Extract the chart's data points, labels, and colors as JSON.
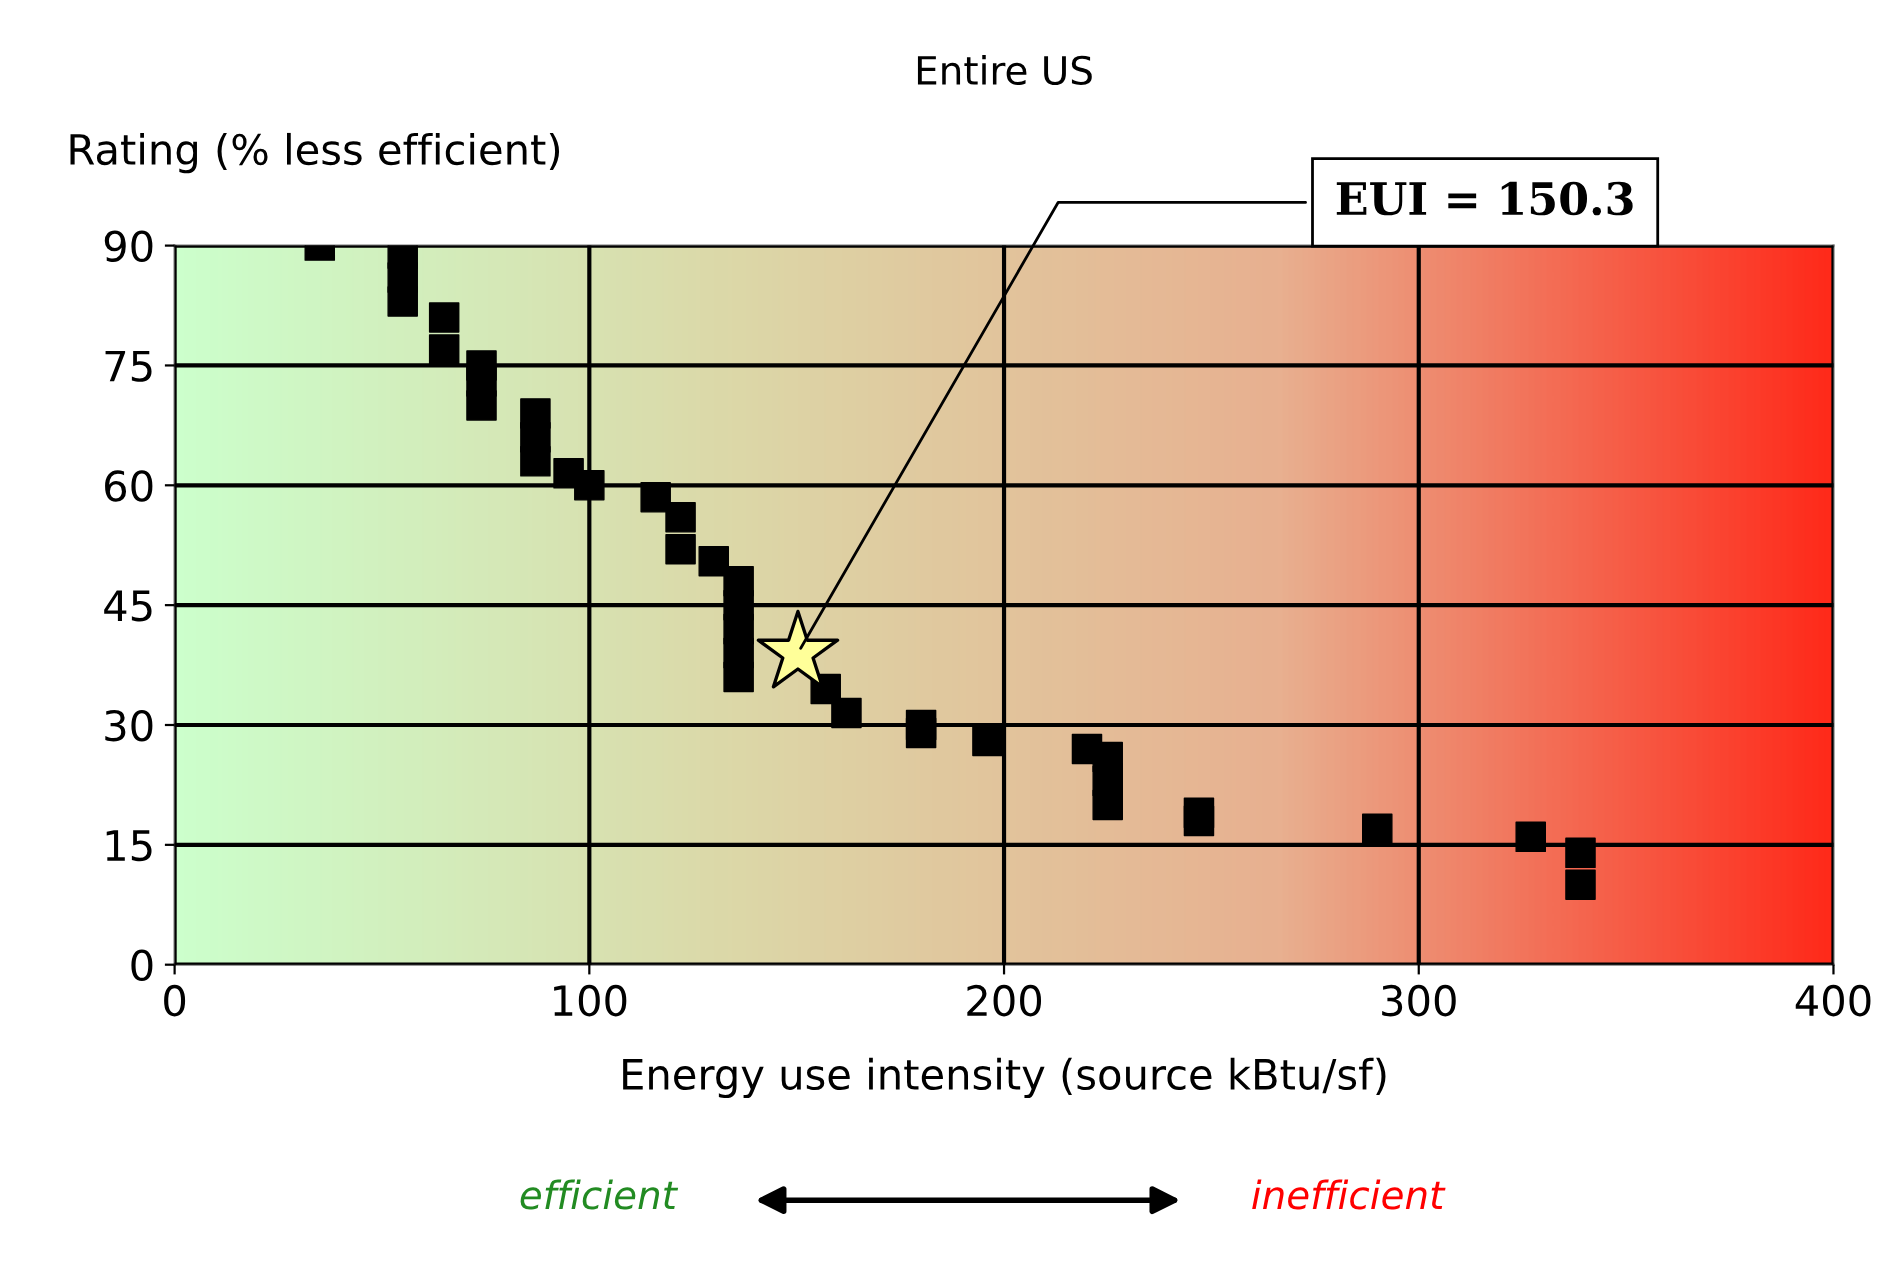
{
  "chart_data": {
    "type": "scatter",
    "title": "Entire US",
    "xlabel": "Energy use intensity (source kBtu/sf)",
    "ylabel": "Rating (% less efficient)",
    "xlim": [
      0,
      400
    ],
    "xticks": [
      0,
      100,
      200,
      300,
      400
    ],
    "ylim": [
      0,
      90
    ],
    "yticks": [
      0,
      15,
      30,
      45,
      60,
      75,
      90
    ],
    "grid": true,
    "series": [
      {
        "marker": "square",
        "color": "#000000",
        "x": [
          35,
          55,
          55,
          55,
          65,
          65,
          74,
          74,
          74,
          87,
          87,
          87,
          95,
          100,
          116,
          122,
          122,
          130,
          136,
          136,
          136,
          136,
          136,
          157,
          162,
          180,
          180,
          196,
          220,
          225,
          225,
          225,
          247,
          247,
          290,
          327,
          339,
          339
        ],
        "values": [
          90,
          89,
          86,
          83,
          81,
          77,
          75,
          73,
          70,
          69,
          66,
          63,
          61.5,
          60,
          58.5,
          56,
          52,
          50.5,
          48,
          45,
          42,
          39,
          36,
          34.5,
          31.5,
          30,
          29,
          28,
          27,
          26,
          23,
          20,
          19,
          18,
          17,
          16,
          14,
          10
        ]
      },
      {
        "marker": "star",
        "color": "#ffff99",
        "x": [
          150.3
        ],
        "values": [
          39
        ]
      }
    ],
    "annotations": [
      {
        "text": "EUI = 150.3",
        "x": 150.3,
        "y": 39
      },
      "efficient",
      "inefficient"
    ]
  }
}
